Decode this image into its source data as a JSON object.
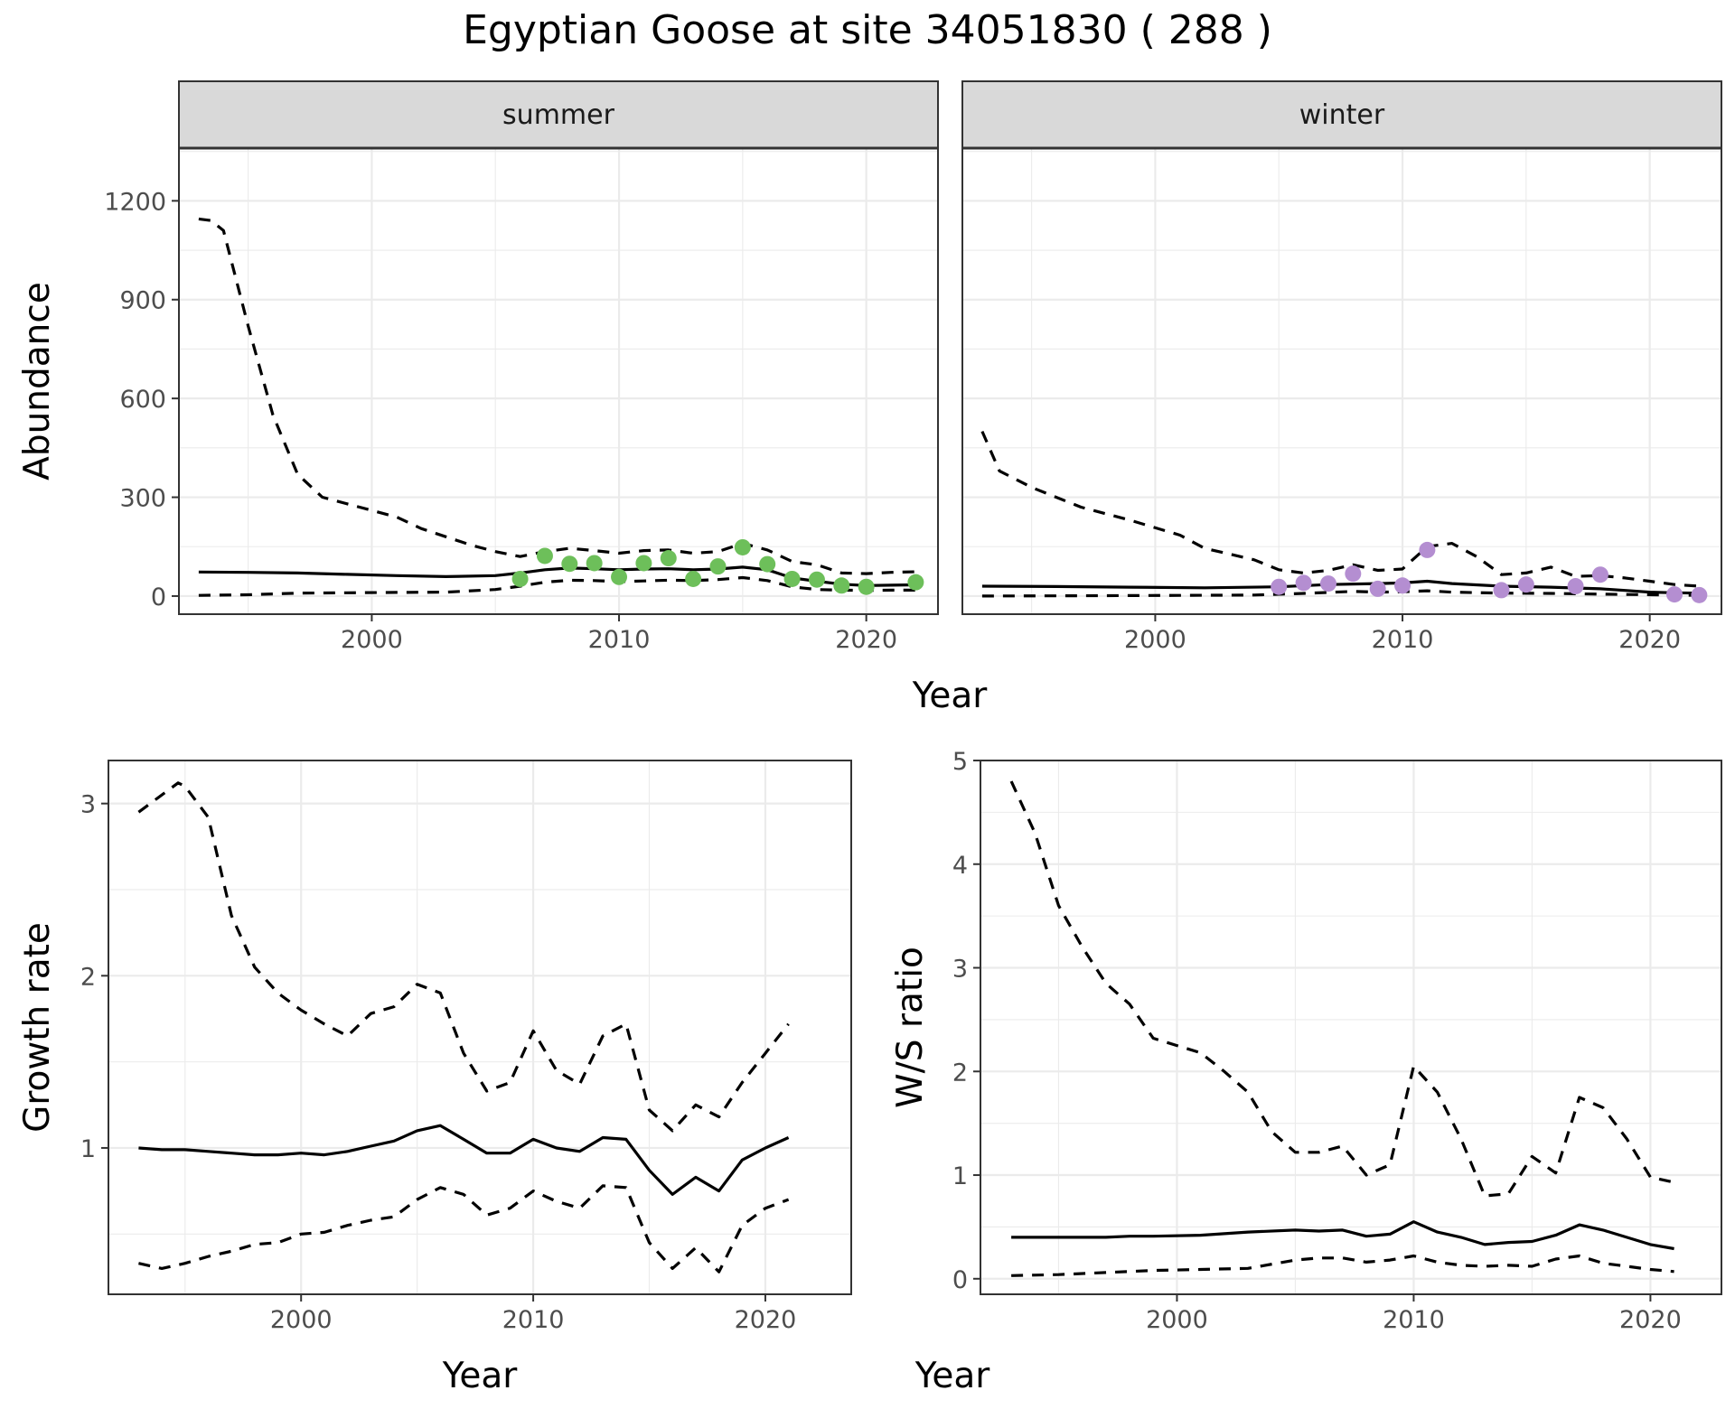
{
  "title": "Egyptian Goose at site 34051830 ( 288 )",
  "chart_data": [
    {
      "id": "abundance",
      "type": "line",
      "ylabel": "Abundance",
      "xlabel": "Year",
      "xlim": [
        1992.2,
        2022.9
      ],
      "ylim": [
        -55,
        1360
      ],
      "xticks": [
        2000,
        2010,
        2020
      ],
      "yticks": [
        0,
        300,
        600,
        900,
        1200
      ],
      "grid": true,
      "facets": [
        {
          "strip": "summer",
          "point_color": "#6DBF5A",
          "series": [
            {
              "name": "mean",
              "style": "solid",
              "x": [
                1993,
                1995,
                1997,
                1999,
                2001,
                2003,
                2005,
                2006,
                2007,
                2008,
                2009,
                2010,
                2011,
                2012,
                2013,
                2014,
                2015,
                2016,
                2017,
                2018,
                2019,
                2020,
                2021,
                2022
              ],
              "y": [
                73,
                72,
                70,
                66,
                62,
                59,
                62,
                70,
                80,
                85,
                83,
                80,
                82,
                83,
                80,
                82,
                88,
                80,
                55,
                45,
                36,
                32,
                33,
                34
              ]
            },
            {
              "name": "upper",
              "style": "dashed",
              "x": [
                1993,
                1993.5,
                1994,
                1995,
                1996,
                1997,
                1998,
                1999,
                2000,
                2001,
                2002,
                2003,
                2004,
                2005,
                2006,
                2007,
                2008,
                2009,
                2010,
                2011,
                2012,
                2013,
                2014,
                2015,
                2016,
                2017,
                2018,
                2019,
                2020,
                2021,
                2022
              ],
              "y": [
                1145,
                1140,
                1110,
                820,
                550,
                370,
                300,
                280,
                260,
                240,
                205,
                180,
                155,
                135,
                120,
                135,
                145,
                138,
                130,
                138,
                140,
                130,
                135,
                160,
                140,
                105,
                95,
                70,
                68,
                72,
                74
              ]
            },
            {
              "name": "lower",
              "style": "dashed",
              "x": [
                1993,
                1995,
                1997,
                1999,
                2001,
                2003,
                2005,
                2006,
                2007,
                2008,
                2009,
                2010,
                2011,
                2012,
                2013,
                2014,
                2015,
                2016,
                2017,
                2018,
                2019,
                2020,
                2021,
                2022
              ],
              "y": [
                2,
                4,
                9,
                10,
                11,
                12,
                20,
                30,
                42,
                48,
                47,
                44,
                46,
                48,
                47,
                50,
                56,
                47,
                28,
                20,
                18,
                17,
                18,
                18
              ]
            }
          ],
          "points": {
            "x": [
              2006,
              2007,
              2008,
              2009,
              2010,
              2011,
              2012,
              2013,
              2014,
              2015,
              2016,
              2017,
              2018,
              2019,
              2020,
              2022
            ],
            "y": [
              52,
              122,
              98,
              100,
              58,
              100,
              115,
              52,
              90,
              148,
              97,
              52,
              50,
              32,
              28,
              42
            ]
          }
        },
        {
          "strip": "winter",
          "point_color": "#B48ED1",
          "series": [
            {
              "name": "mean",
              "style": "solid",
              "x": [
                1993,
                1996,
                1999,
                2002,
                2005,
                2007,
                2009,
                2010,
                2011,
                2012,
                2014,
                2016,
                2018,
                2019,
                2020,
                2021,
                2022
              ],
              "y": [
                30,
                29,
                27,
                25,
                28,
                35,
                38,
                40,
                45,
                38,
                30,
                27,
                22,
                17,
                12,
                10,
                9
              ]
            },
            {
              "name": "upper",
              "style": "dashed",
              "x": [
                1993,
                1993.7,
                1995,
                1997,
                1999,
                2001,
                2002,
                2004,
                2005,
                2006,
                2007,
                2008,
                2009,
                2010,
                2011,
                2012,
                2013,
                2014,
                2015,
                2016,
                2017,
                2018,
                2019,
                2020,
                2021,
                2022
              ],
              "y": [
                500,
                380,
                330,
                270,
                230,
                185,
                145,
                110,
                80,
                70,
                78,
                95,
                78,
                82,
                150,
                160,
                120,
                65,
                70,
                88,
                60,
                62,
                55,
                45,
                35,
                30
              ]
            },
            {
              "name": "lower",
              "style": "dashed",
              "x": [
                1993,
                1997,
                2001,
                2004,
                2006,
                2008,
                2009,
                2010,
                2011,
                2012,
                2014,
                2016,
                2018,
                2020,
                2022
              ],
              "y": [
                0,
                1,
                2,
                3,
                8,
                14,
                12,
                13,
                16,
                12,
                9,
                8,
                6,
                4,
                2
              ]
            }
          ],
          "points": {
            "x": [
              2005,
              2006,
              2007,
              2008,
              2009,
              2010,
              2011,
              2014,
              2015,
              2017,
              2018,
              2021,
              2022
            ],
            "y": [
              28,
              40,
              38,
              68,
              22,
              32,
              140,
              18,
              35,
              30,
              65,
              5,
              3
            ]
          }
        }
      ]
    },
    {
      "id": "growth",
      "type": "line",
      "ylabel": "Growth rate",
      "xlabel": "Year",
      "xlim": [
        1991.7,
        2023.7
      ],
      "ylim": [
        0.15,
        3.25
      ],
      "xticks": [
        2000,
        2010,
        2020
      ],
      "yticks": [
        1,
        2,
        3
      ],
      "grid": true,
      "series": [
        {
          "name": "mean",
          "style": "solid",
          "x": [
            1993,
            1994,
            1995,
            1996,
            1997,
            1998,
            1999,
            2000,
            2001,
            2002,
            2003,
            2004,
            2005,
            2006,
            2007,
            2008,
            2009,
            2010,
            2011,
            2012,
            2013,
            2014,
            2015,
            2016,
            2017,
            2018,
            2019,
            2020,
            2021
          ],
          "y": [
            1.0,
            0.99,
            0.99,
            0.98,
            0.97,
            0.96,
            0.96,
            0.97,
            0.96,
            0.98,
            1.01,
            1.04,
            1.1,
            1.13,
            1.05,
            0.97,
            0.97,
            1.05,
            1.0,
            0.98,
            1.06,
            1.05,
            0.87,
            0.73,
            0.83,
            0.75,
            0.93,
            1.0,
            1.06
          ]
        },
        {
          "name": "upper",
          "style": "dashed",
          "x": [
            1993,
            1994,
            1994.7,
            1995,
            1996,
            1997,
            1998,
            1999,
            2000,
            2001,
            2002,
            2003,
            2004,
            2005,
            2006,
            2007,
            2008,
            2009,
            2010,
            2011,
            2012,
            2013,
            2014,
            2015,
            2016,
            2017,
            2018,
            2019,
            2020,
            2021
          ],
          "y": [
            2.95,
            3.05,
            3.12,
            3.1,
            2.92,
            2.35,
            2.05,
            1.9,
            1.8,
            1.72,
            1.65,
            1.78,
            1.82,
            1.95,
            1.9,
            1.55,
            1.33,
            1.38,
            1.68,
            1.45,
            1.37,
            1.65,
            1.72,
            1.22,
            1.1,
            1.25,
            1.18,
            1.38,
            1.55,
            1.72
          ]
        },
        {
          "name": "lower",
          "style": "dashed",
          "x": [
            1993,
            1994,
            1995,
            1996,
            1997,
            1998,
            1999,
            2000,
            2001,
            2002,
            2003,
            2004,
            2005,
            2006,
            2007,
            2008,
            2009,
            2010,
            2011,
            2012,
            2013,
            2014,
            2015,
            2016,
            2017,
            2018,
            2019,
            2020,
            2021
          ],
          "y": [
            0.33,
            0.3,
            0.33,
            0.37,
            0.4,
            0.44,
            0.45,
            0.5,
            0.51,
            0.55,
            0.58,
            0.6,
            0.7,
            0.77,
            0.73,
            0.61,
            0.65,
            0.75,
            0.69,
            0.65,
            0.78,
            0.77,
            0.45,
            0.3,
            0.42,
            0.28,
            0.55,
            0.65,
            0.7
          ]
        }
      ]
    },
    {
      "id": "ratio",
      "type": "line",
      "ylabel": "W/S ratio",
      "xlabel": "Year",
      "xlim": [
        1991.7,
        2023.0
      ],
      "ylim": [
        -0.15,
        5.0
      ],
      "xticks": [
        2000,
        2010,
        2020
      ],
      "yticks": [
        0,
        1,
        2,
        3,
        4,
        5
      ],
      "grid": true,
      "series": [
        {
          "name": "mean",
          "style": "solid",
          "x": [
            1993,
            1995,
            1997,
            1998,
            1999,
            2001,
            2003,
            2005,
            2006,
            2007,
            2008,
            2009,
            2010,
            2011,
            2012,
            2013,
            2014,
            2015,
            2016,
            2017,
            2018,
            2019,
            2020,
            2021
          ],
          "y": [
            0.4,
            0.4,
            0.4,
            0.41,
            0.41,
            0.42,
            0.45,
            0.47,
            0.46,
            0.47,
            0.41,
            0.43,
            0.55,
            0.45,
            0.4,
            0.33,
            0.35,
            0.36,
            0.42,
            0.52,
            0.47,
            0.4,
            0.33,
            0.29
          ]
        },
        {
          "name": "upper",
          "style": "dashed",
          "x": [
            1993,
            1994,
            1995,
            1996,
            1997,
            1998,
            1999,
            2000,
            2001,
            2002,
            2003,
            2004,
            2005,
            2006,
            2007,
            2008,
            2009,
            2010,
            2011,
            2012,
            2013,
            2014,
            2015,
            2016,
            2017,
            2018,
            2019,
            2020,
            2021
          ],
          "y": [
            4.8,
            4.3,
            3.6,
            3.2,
            2.85,
            2.65,
            2.32,
            2.25,
            2.18,
            2.0,
            1.8,
            1.42,
            1.22,
            1.22,
            1.28,
            1.0,
            1.1,
            2.05,
            1.8,
            1.35,
            0.8,
            0.82,
            1.18,
            1.02,
            1.75,
            1.65,
            1.35,
            0.98,
            0.93
          ]
        },
        {
          "name": "lower",
          "style": "dashed",
          "x": [
            1993,
            1995,
            1997,
            1999,
            2001,
            2003,
            2005,
            2006,
            2007,
            2008,
            2009,
            2010,
            2011,
            2012,
            2013,
            2014,
            2015,
            2016,
            2017,
            2018,
            2019,
            2020,
            2021
          ],
          "y": [
            0.03,
            0.04,
            0.06,
            0.08,
            0.09,
            0.1,
            0.18,
            0.2,
            0.2,
            0.16,
            0.18,
            0.22,
            0.16,
            0.13,
            0.12,
            0.13,
            0.12,
            0.19,
            0.22,
            0.15,
            0.12,
            0.09,
            0.07
          ]
        }
      ]
    }
  ]
}
